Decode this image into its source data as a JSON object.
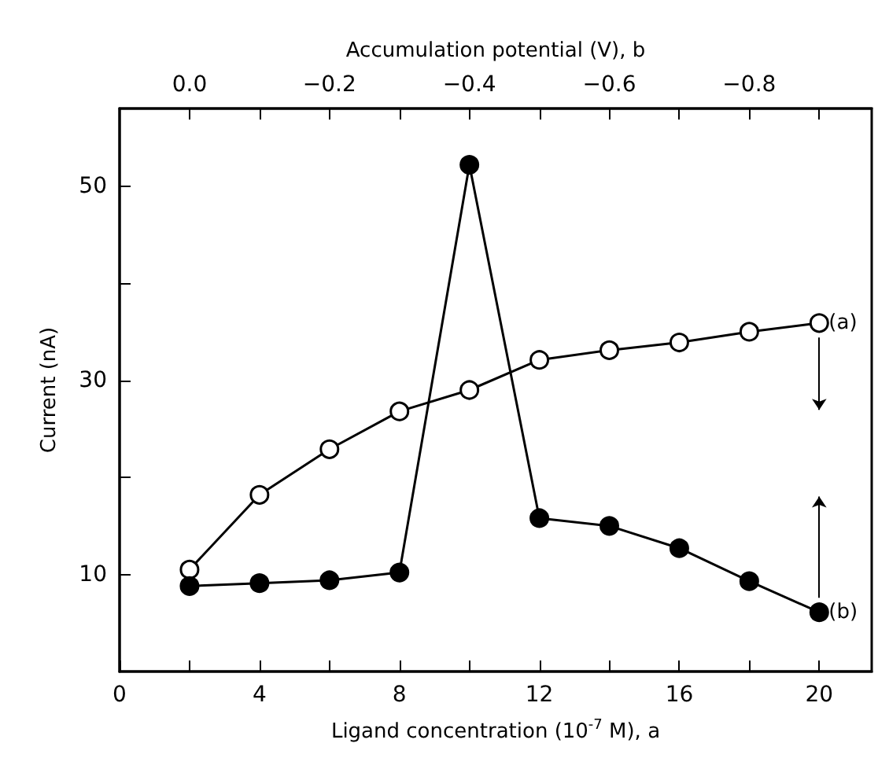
{
  "chart_data": {
    "type": "line",
    "xlabel": "Ligand concentration (10$^{-7}$ M), a",
    "x2label": "Accumulation potential (V), b",
    "ylabel": "Current (nA)",
    "xlim": [
      0,
      21.5
    ],
    "xticks": [
      0,
      {
        "value": 2,
        "label": null
      },
      4,
      {
        "value": 6,
        "label": null
      },
      8,
      {
        "value": 10,
        "label": null
      },
      12,
      {
        "value": 14,
        "label": null
      },
      16,
      {
        "value": 18,
        "label": null
      },
      20
    ],
    "x2lim": [
      0.1,
      -0.975
    ],
    "x2ticks": [
      {
        "value": 0,
        "label": "0.0"
      },
      {
        "value": -0.1,
        "label": null
      },
      {
        "value": -0.2,
        "label": "−0.2"
      },
      {
        "value": -0.3,
        "label": null
      },
      {
        "value": -0.4,
        "label": "−0.4"
      },
      {
        "value": -0.5,
        "label": null
      },
      {
        "value": -0.6,
        "label": "−0.6"
      },
      {
        "value": -0.7,
        "label": null
      },
      {
        "value": -0.8,
        "label": "−0.8"
      },
      {
        "value": -0.9,
        "label": null
      }
    ],
    "ylim": [
      0,
      58
    ],
    "yticks": [
      10,
      {
        "value": 20,
        "label": null
      },
      30,
      {
        "value": 40,
        "label": null
      },
      50
    ],
    "x": [
      2,
      4,
      6,
      8,
      10,
      12,
      14,
      16,
      18,
      20
    ],
    "marker": "circle",
    "grid": false,
    "legend": false,
    "series": [
      {
        "name": "(a)",
        "color": "#000000",
        "values": [
          10.5,
          18.2,
          22.9,
          26.8,
          29.0,
          32.1,
          33.1,
          33.9,
          35.0,
          35.9
        ]
      },
      {
        "name": "(b)",
        "color": "#000000",
        "values": [
          8.8,
          9.1,
          9.4,
          10.2,
          52.2,
          15.8,
          15.0,
          12.7,
          9.3,
          6.1
        ]
      }
    ]
  }
}
